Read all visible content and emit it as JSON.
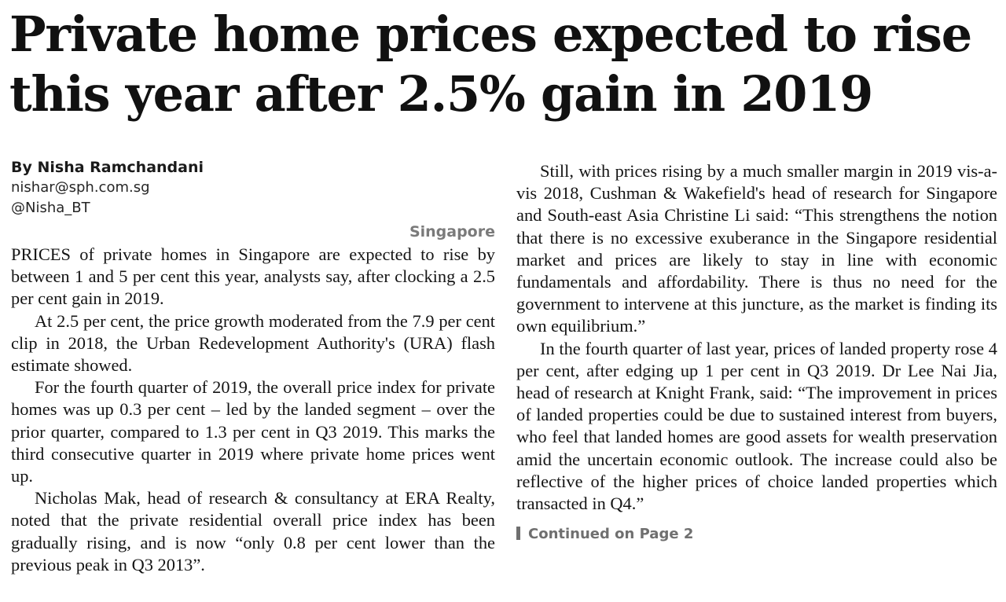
{
  "article": {
    "headline_line1": "Private home prices expected to rise",
    "headline_line2": "this year after 2.5% gain in 2019",
    "byline": {
      "author": "By Nisha Ramchandani",
      "email": "nishar@sph.com.sg",
      "handle": "@Nisha_BT"
    },
    "dateline": "Singapore",
    "paragraphs_left": [
      "PRICES of private homes in Singapore are expected to rise by between 1 and 5 per cent this year, analysts say, after clocking a 2.5 per cent gain in 2019.",
      "At 2.5 per cent, the price growth moderated from the 7.9 per cent clip in 2018, the Urban Redevelopment Authority's (URA) flash estimate showed.",
      "For the fourth quarter of 2019, the overall price index for private homes was up 0.3 per cent – led by the landed segment – over the prior quarter, compared to 1.3 per cent in Q3 2019. This marks the third consecutive quarter in 2019 where private home prices went up.",
      "Nicholas Mak, head of research & consultancy at ERA Realty, noted that the private residential overall price index has been gradually rising, and is now “only 0.8 per cent lower than the previous peak in Q3 2013”."
    ],
    "paragraphs_right": [
      "Still, with prices rising by a much smaller margin in 2019 vis-a-vis 2018, Cushman & Wakefield's head of research for Singapore and South-east Asia Christine Li said: “This strengthens the notion that there is no excessive exuberance in the Singapore residential market and prices are likely to stay in line with economic fundamentals and affordability. There is thus no need for the government to intervene at this juncture, as the market is finding its own equilibrium.”",
      "In the fourth quarter of last year, prices of landed property rose 4 per cent, after edging up 1 per cent in Q3 2019. Dr Lee Nai Jia, head of research at Knight Frank, said: “The improvement in prices of landed properties could be due to sustained interest from buyers, who feel that landed homes are good assets for wealth preservation amid the uncertain economic outlook. The increase could also be reflective of the higher prices of choice landed properties which transacted in Q4.”"
    ],
    "continued": "Continued on Page 2"
  }
}
